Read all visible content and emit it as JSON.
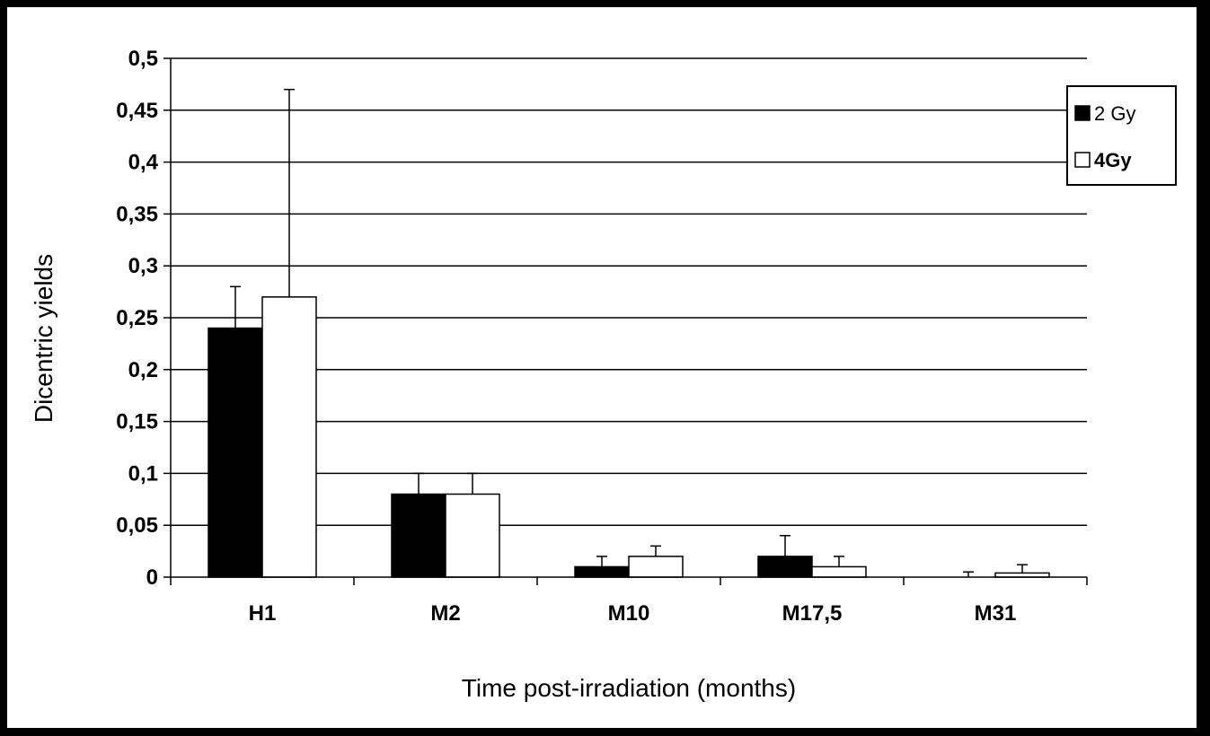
{
  "chart_data": {
    "type": "bar",
    "title": "",
    "xlabel": "Time post-irradiation (months)",
    "ylabel": "Dicentric yields",
    "categories": [
      "H1",
      "M2",
      "M10",
      "M17,5",
      "M31"
    ],
    "ylim": [
      0,
      0.5
    ],
    "yticks": [
      0,
      0.05,
      0.1,
      0.15,
      0.2,
      0.25,
      0.3,
      0.35,
      0.4,
      0.45,
      0.5
    ],
    "ytick_labels": [
      "0",
      "0,05",
      "0,1",
      "0,15",
      "0,2",
      "0,25",
      "0,3",
      "0,35",
      "0,4",
      "0,45",
      "0,5"
    ],
    "grid": "horizontal",
    "legend_position": "top-right",
    "series": [
      {
        "name": "2 Gy",
        "color": "#000000",
        "values": [
          0.24,
          0.08,
          0.01,
          0.02,
          0.0
        ],
        "error": [
          0.04,
          0.02,
          0.01,
          0.02,
          0.005
        ]
      },
      {
        "name": "4Gy",
        "color": "#ffffff",
        "values": [
          0.27,
          0.08,
          0.02,
          0.01,
          0.004
        ],
        "error": [
          0.2,
          0.02,
          0.01,
          0.01,
          0.008
        ]
      }
    ]
  }
}
